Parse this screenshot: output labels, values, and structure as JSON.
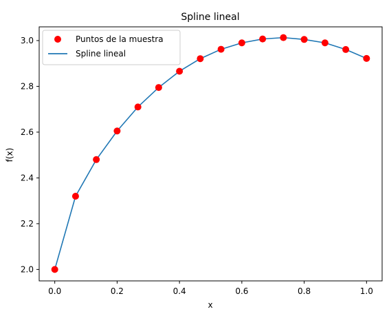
{
  "chart_data": {
    "type": "line",
    "title": "Spline lineal",
    "xlabel": "x",
    "ylabel": "f(x)",
    "xlim": [
      -0.05,
      1.05
    ],
    "ylim": [
      1.95,
      3.06
    ],
    "xticks": [
      "0.0",
      "0.2",
      "0.4",
      "0.6",
      "0.8",
      "1.0"
    ],
    "yticks": [
      "2.0",
      "2.2",
      "2.4",
      "2.6",
      "2.8",
      "3.0"
    ],
    "grid": false,
    "legend_position": "top-left",
    "series": [
      {
        "name": "Puntos de la muestra",
        "style": "scatter",
        "color": "#ff0000",
        "x": [
          0.0,
          0.0667,
          0.1333,
          0.2,
          0.2667,
          0.3333,
          0.4,
          0.4667,
          0.5333,
          0.6,
          0.6667,
          0.7333,
          0.8,
          0.8667,
          0.9333,
          1.0
        ],
        "y": [
          2.0,
          2.32,
          2.48,
          2.605,
          2.71,
          2.795,
          2.866,
          2.921,
          2.962,
          2.99,
          3.007,
          3.013,
          3.005,
          2.99,
          2.961,
          2.922
        ]
      },
      {
        "name": "Spline lineal",
        "style": "line",
        "color": "#1f77b4",
        "x": [
          0.0,
          0.0667,
          0.1333,
          0.2,
          0.2667,
          0.3333,
          0.4,
          0.4667,
          0.5333,
          0.6,
          0.6667,
          0.7333,
          0.8,
          0.8667,
          0.9333,
          1.0
        ],
        "y": [
          2.0,
          2.32,
          2.48,
          2.605,
          2.71,
          2.795,
          2.866,
          2.921,
          2.962,
          2.99,
          3.007,
          3.013,
          3.005,
          2.99,
          2.961,
          2.922
        ]
      }
    ]
  }
}
